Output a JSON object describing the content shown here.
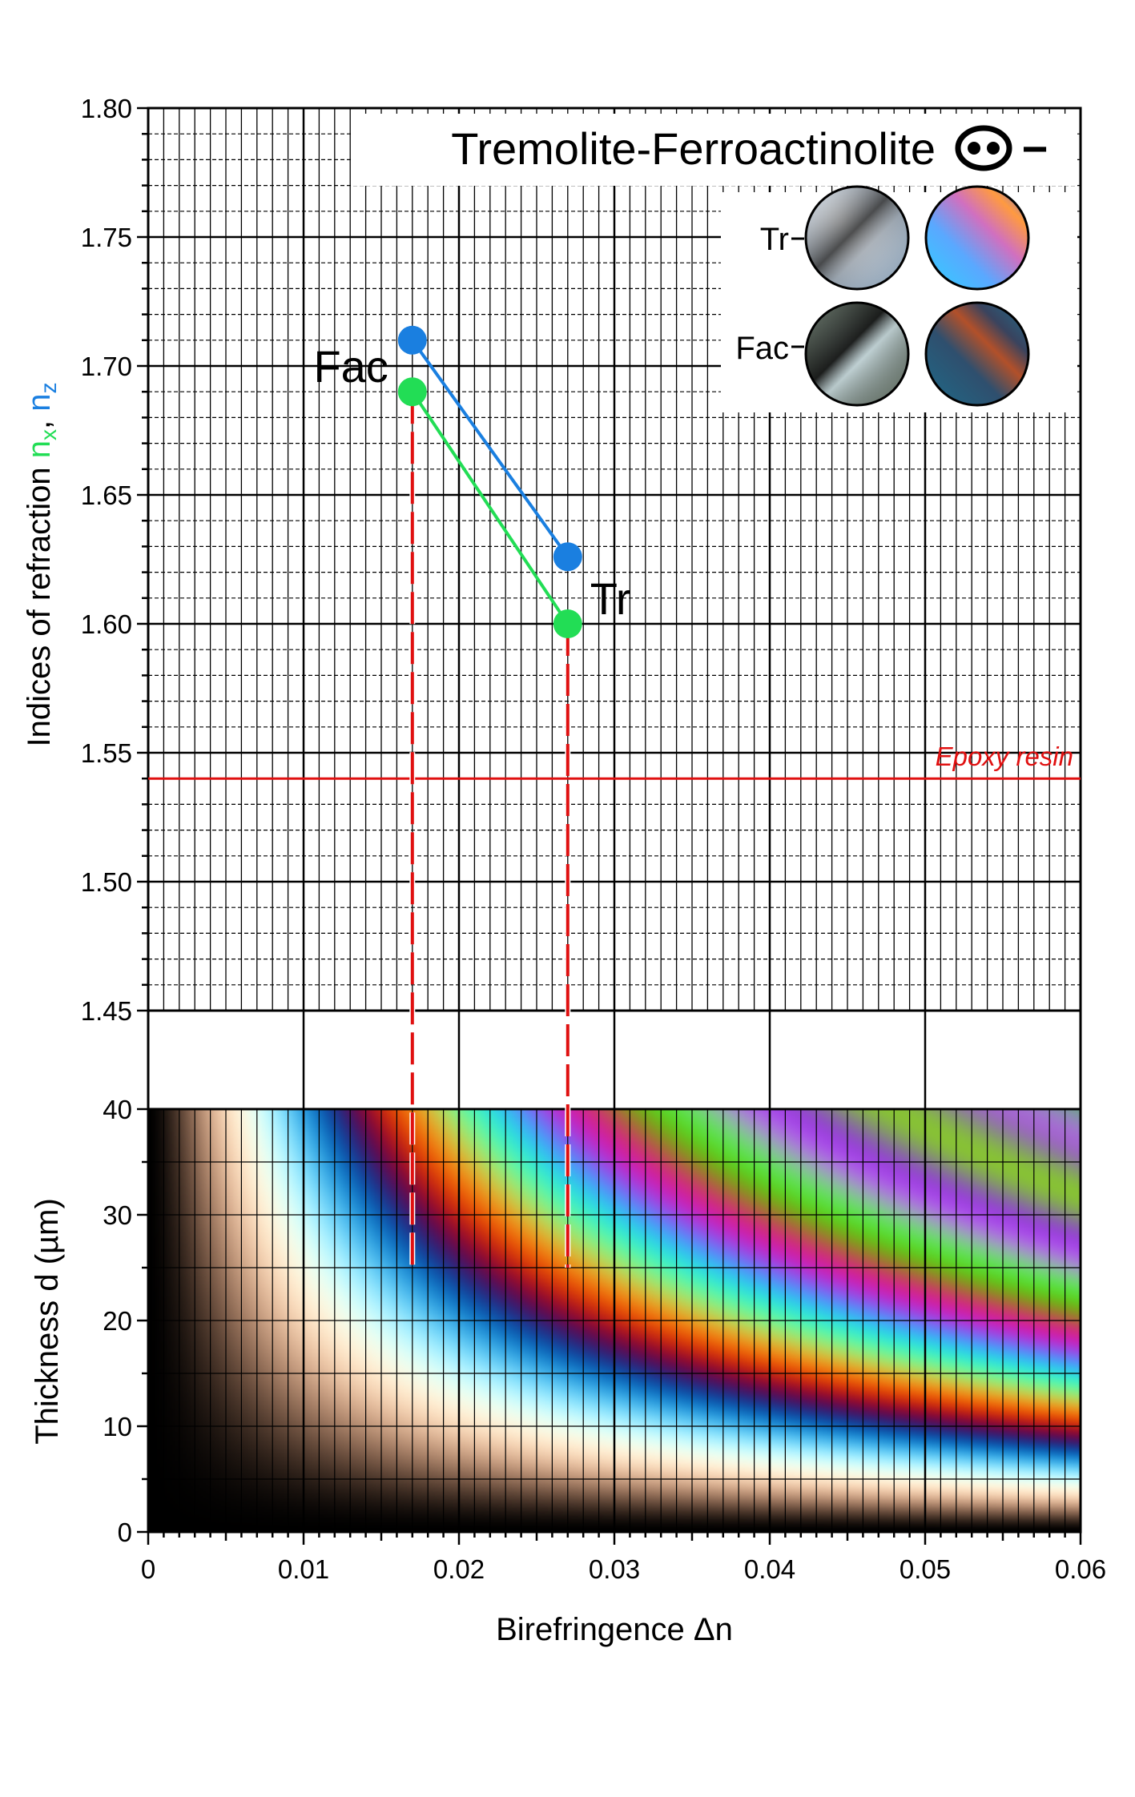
{
  "colors": {
    "nx": "#22dd55",
    "nz": "#1a7fe0",
    "reference": "#e01010",
    "grid": "#000000"
  },
  "chart_data": [
    {
      "type": "line",
      "title": "Tremolite-Ferroactinolite",
      "optic_sign_symbol": "−",
      "xlabel": "",
      "ylabel": "Indices of refraction",
      "ylabel_nx": "n",
      "ylabel_nx_sub": "x",
      "ylabel_sep": ",",
      "ylabel_nz": "n",
      "ylabel_nz_sub": "z",
      "xlim": [
        0,
        0.06
      ],
      "ylim": [
        1.45,
        1.8
      ],
      "yticks": [
        "1.45",
        "1.50",
        "1.55",
        "1.60",
        "1.65",
        "1.70",
        "1.75",
        "1.80"
      ],
      "grid": true,
      "series": [
        {
          "name": "",
          "key": "nz",
          "x": [
            0.017,
            0.027
          ],
          "y": [
            1.71,
            1.626
          ]
        },
        {
          "name": "",
          "key": "nx",
          "x": [
            0.017,
            0.027
          ],
          "y": [
            1.69,
            1.6
          ]
        }
      ],
      "annotations": [
        {
          "text": "Fac",
          "x": 0.017,
          "y": 1.7
        },
        {
          "text": "Tr",
          "x": 0.027,
          "y": 1.61
        }
      ],
      "reference_line": {
        "label": "Epoxy resin",
        "y": 1.54
      },
      "inset": {
        "row_labels": [
          "Tr",
          "Fac"
        ]
      }
    },
    {
      "type": "heatmap",
      "title": "",
      "xlabel": "Birefringence  Δn",
      "ylabel": "Thickness  d (µm)",
      "xlim": [
        0,
        0.06
      ],
      "ylim": [
        0,
        40
      ],
      "xticks": [
        "0",
        "0.01",
        "0.02",
        "0.03",
        "0.04",
        "0.05",
        "0.06"
      ],
      "yticks": [
        "0",
        "10",
        "20",
        "30",
        "40"
      ],
      "grid": true,
      "description_value": "interference colour as function of retardation = d × Δn",
      "drop_lines": [
        {
          "x": 0.017,
          "from_y": 1.69,
          "to_d": 25
        },
        {
          "x": 0.027,
          "from_y": 1.6,
          "to_d": 25
        }
      ]
    }
  ]
}
